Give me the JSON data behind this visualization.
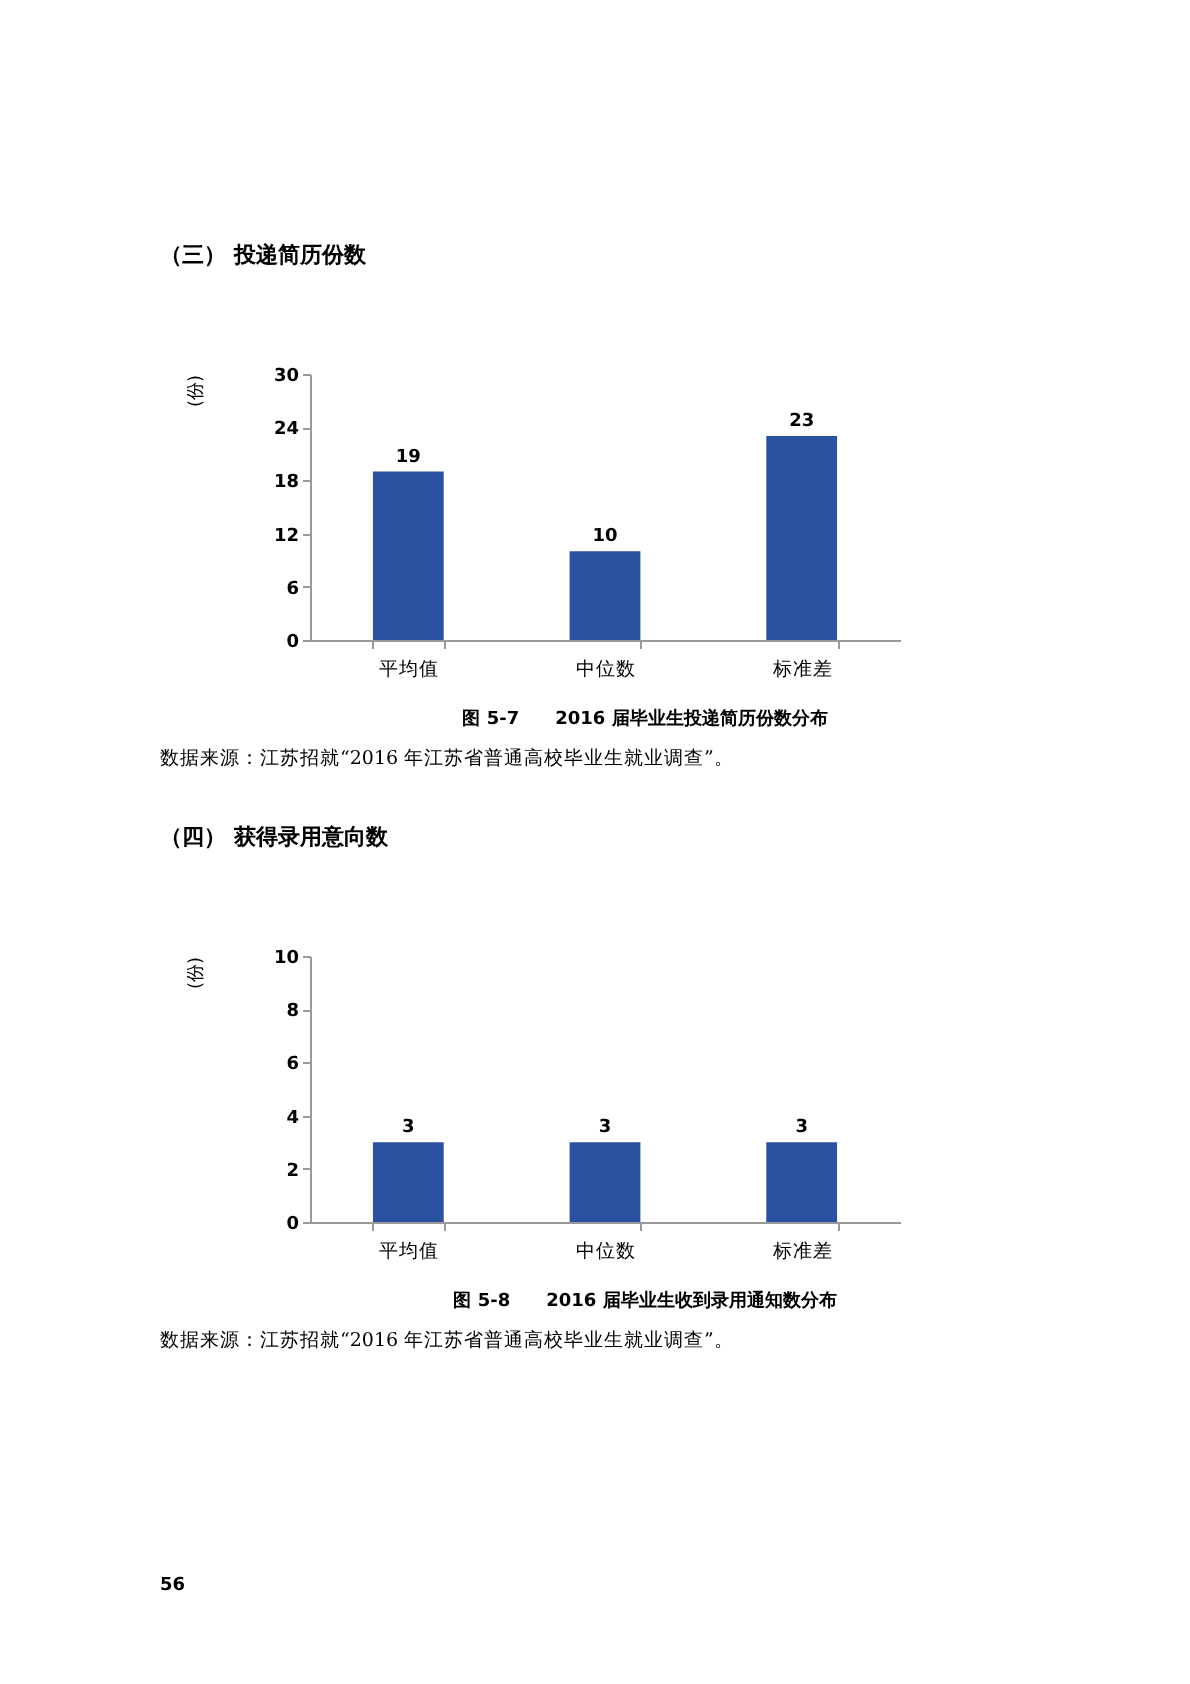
{
  "chart_data": [
    {
      "type": "bar",
      "title": "（三） 投递简历份数",
      "ylabel": "(份)",
      "categories": [
        "平均值",
        "中位数",
        "标准差"
      ],
      "values": [
        19,
        10,
        23
      ],
      "color": "#2a52a0",
      "ylim": [
        0,
        30
      ],
      "yticks": [
        0,
        6,
        12,
        18,
        24,
        30
      ],
      "grid": false,
      "data_labels": true,
      "annotations": [
        "图 5-7　　2016 届毕业生投递简历份数分布",
        "数据来源：江苏招就“2016 年江苏省普通高校毕业生就业调查”。"
      ]
    },
    {
      "type": "bar",
      "title": "（四） 获得录用意向数",
      "ylabel": "(份)",
      "categories": [
        "平均值",
        "中位数",
        "标准差"
      ],
      "values": [
        3,
        3,
        3
      ],
      "color": "#2a52a0",
      "ylim": [
        0,
        10
      ],
      "yticks": [
        0,
        2,
        4,
        6,
        8,
        10
      ],
      "grid": false,
      "data_labels": true,
      "annotations": [
        "图 5-8　　2016 届毕业生收到录用通知数分布",
        "数据来源：江苏招就“2016 年江苏省普通高校毕业生就业调查”。",
        "56"
      ]
    }
  ]
}
